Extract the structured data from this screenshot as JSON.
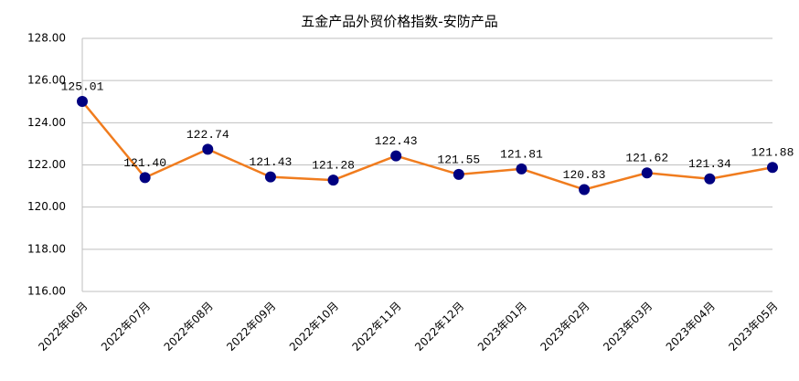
{
  "chart_data": {
    "type": "line",
    "title": "五金产品外贸价格指数-安防产品",
    "categories": [
      "2022年06月",
      "2022年07月",
      "2022年08月",
      "2022年09月",
      "2022年10月",
      "2022年11月",
      "2022年12月",
      "2023年01月",
      "2023年02月",
      "2023年03月",
      "2023年04月",
      "2023年05月"
    ],
    "values": [
      125.01,
      121.4,
      122.74,
      121.43,
      121.28,
      122.43,
      121.55,
      121.81,
      120.83,
      121.62,
      121.34,
      121.88
    ],
    "value_labels": [
      "125.01",
      "121.40",
      "122.74",
      "121.43",
      "121.28",
      "122.43",
      "121.55",
      "121.81",
      "120.83",
      "121.62",
      "121.34",
      "121.88"
    ],
    "color": "#f07c1e",
    "marker_color": "#000080",
    "ylim": [
      116,
      128
    ],
    "yticks": [
      {
        "value": 116,
        "label": "116.00"
      },
      {
        "value": 118,
        "label": "118.00"
      },
      {
        "value": 120,
        "label": "120.00"
      },
      {
        "value": 122,
        "label": "122.00"
      },
      {
        "value": 124,
        "label": "124.00"
      },
      {
        "value": 126,
        "label": "126.00"
      },
      {
        "value": 128,
        "label": "128.00"
      }
    ],
    "grid": true
  }
}
